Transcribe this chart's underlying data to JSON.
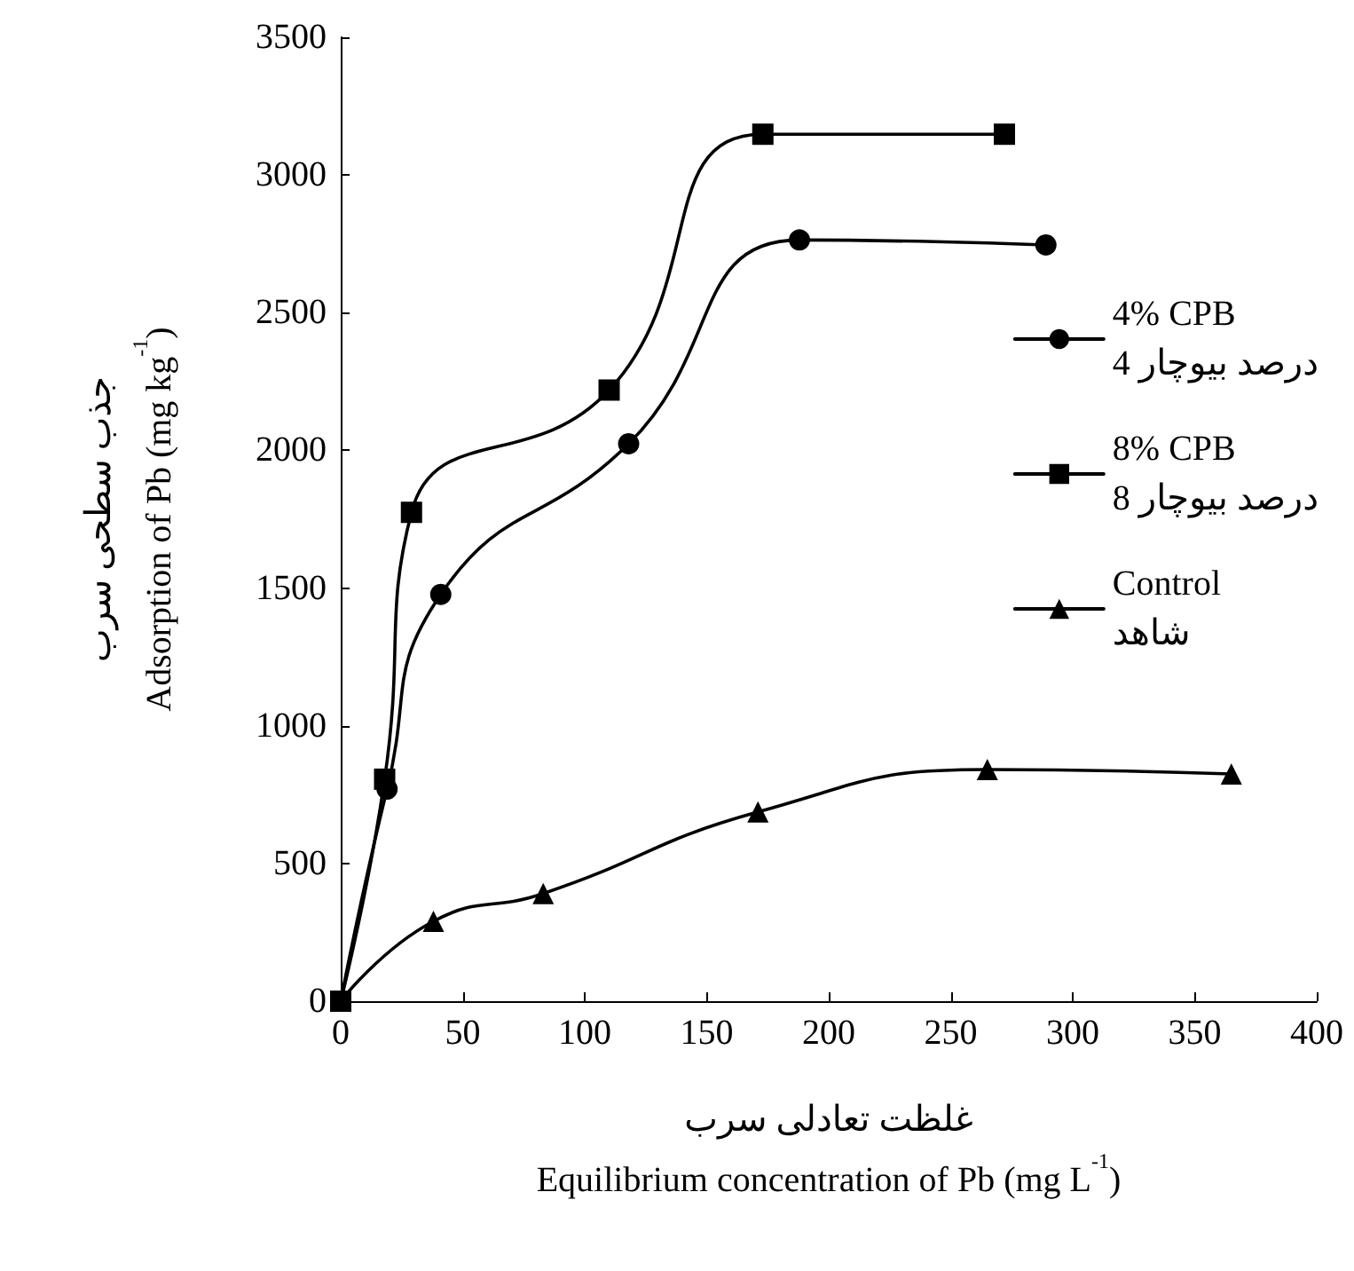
{
  "chart_data": {
    "type": "line",
    "xlabel": "غلظت تعادلی سرب\nEquilibrium concentration of Pb (mg L$^{-1}$)",
    "ylabel": "جذب سطحی سرب\nAdsorption of Pb (mg kg$^{-1}$)",
    "xlim": [
      0,
      400
    ],
    "xticks": [
      0,
      50,
      100,
      150,
      200,
      250,
      300,
      350,
      400
    ],
    "ylim": [
      0,
      3500
    ],
    "yticks": [
      0,
      500,
      1000,
      1500,
      2000,
      2500,
      3000,
      3500
    ],
    "grid": false,
    "legend": "right",
    "series": [
      {
        "name": "4% CPB\n4 درصد بیوچار",
        "color": "#000000",
        "marker": "circle",
        "x": [
          0,
          19,
          41,
          118,
          188,
          289
        ],
        "values": [
          0,
          770,
          1477,
          2024,
          2764,
          2746
        ]
      },
      {
        "name": "8% CPB\n8 درصد بیوچار",
        "color": "#000000",
        "marker": "square",
        "x": [
          0,
          18,
          29,
          110,
          173,
          272
        ],
        "values": [
          0,
          806,
          1775,
          2219,
          3148,
          3148
        ]
      },
      {
        "name": "Control\nشاهد",
        "color": "#000000",
        "marker": "triangle",
        "x": [
          0,
          38,
          83,
          171,
          265,
          365
        ],
        "values": [
          0,
          290,
          391,
          687,
          841,
          825
        ]
      }
    ]
  }
}
